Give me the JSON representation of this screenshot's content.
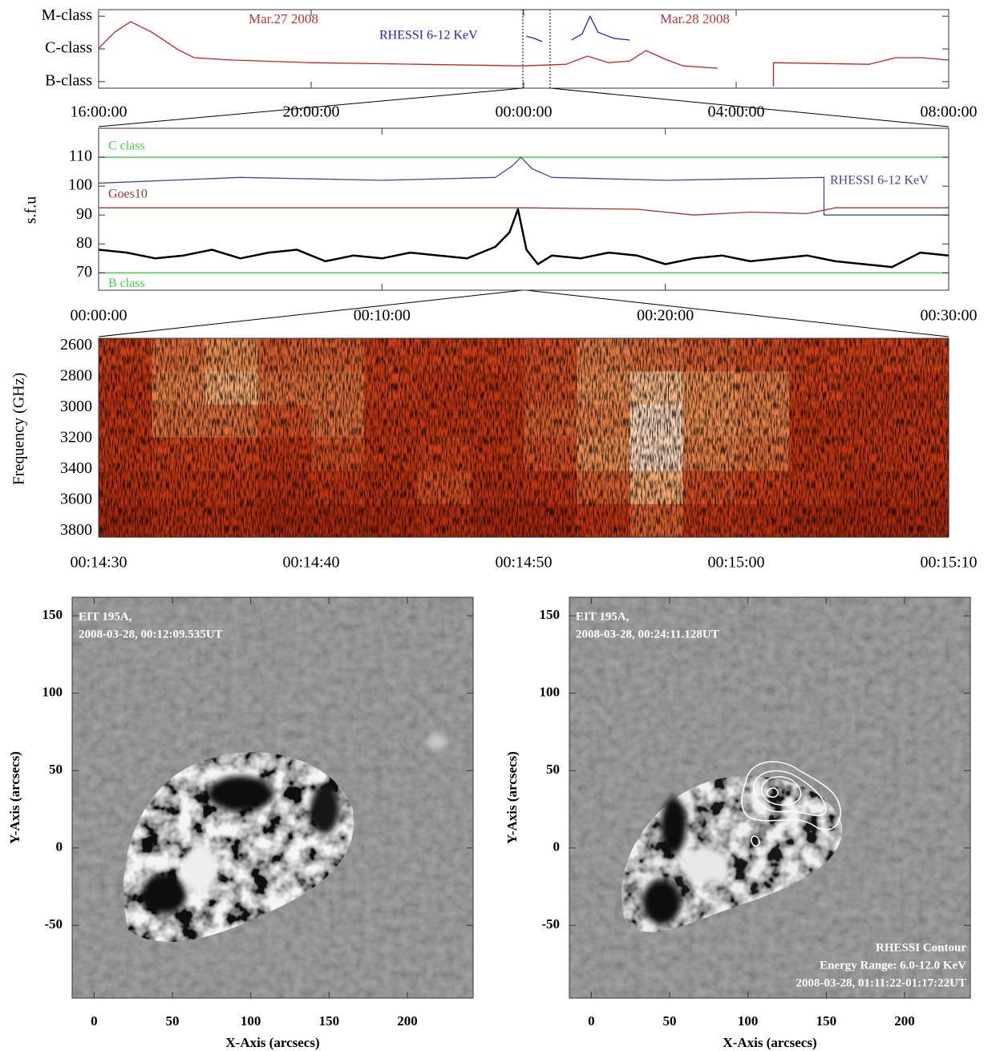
{
  "chart_data": [
    {
      "type": "line",
      "xlim": [
        16,
        32
      ],
      "xticks": [
        {
          "value": 16,
          "label": "16:00:00"
        },
        {
          "value": 20,
          "label": "20:00:00"
        },
        {
          "value": 24,
          "label": "00:00:00"
        },
        {
          "value": 28,
          "label": "04:00:00"
        },
        {
          "value": 32,
          "label": "08:00:00"
        }
      ],
      "ylim": [
        0.8,
        3.2
      ],
      "yticks": [
        {
          "value": 3,
          "label": "M-class"
        },
        {
          "value": 2,
          "label": "C-class"
        },
        {
          "value": 1,
          "label": "B-class"
        }
      ],
      "annotations": [
        {
          "text": "Mar.27 2008",
          "color": "#c83232"
        },
        {
          "text": "Mar.28 2008",
          "color": "#c83232"
        }
      ],
      "series": [
        {
          "color": "#d02020",
          "x": [
            16,
            16.3,
            16.6,
            17.0,
            17.5,
            17.8,
            18.5,
            20,
            22,
            24,
            24.8,
            25.2,
            25.6,
            26.0,
            26.3,
            26.7,
            27.0,
            27.65,
            null,
            28.7,
            28.7,
            30.5,
            31.0,
            31.5,
            32
          ],
          "values": [
            2.02,
            2.51,
            2.83,
            2.51,
            1.97,
            1.73,
            1.66,
            1.58,
            1.53,
            1.48,
            1.53,
            1.78,
            1.58,
            1.63,
            1.95,
            1.66,
            1.48,
            1.41,
            null,
            0.85,
            1.58,
            1.53,
            1.73,
            1.73,
            1.66
          ]
        },
        {
          "name": "RHESSI 6-12 KeV",
          "color": "#2020e0",
          "x": [
            24.05,
            24.2,
            24.35,
            null,
            24.9,
            25.1,
            25.25,
            25.4,
            25.7,
            26.0
          ],
          "values": [
            2.39,
            2.32,
            2.22,
            null,
            2.27,
            2.46,
            3.0,
            2.51,
            2.32,
            2.27
          ]
        }
      ]
    },
    {
      "type": "line",
      "ylabel": "s.f.u",
      "xlim": [
        0,
        30
      ],
      "xticks": [
        {
          "value": 0,
          "label": "00:00:00"
        },
        {
          "value": 10,
          "label": "00:10:00"
        },
        {
          "value": 20,
          "label": "00:20:00"
        },
        {
          "value": 30,
          "label": "00:30:00"
        }
      ],
      "ylim": [
        64,
        120
      ],
      "yticks": [
        70,
        80,
        90,
        100,
        110
      ],
      "hlines": [
        {
          "value": 110,
          "label": "C class",
          "color": "#44d044"
        },
        {
          "value": 70,
          "label": "B class",
          "color": "#44d044"
        }
      ],
      "series": [
        {
          "name": "RHESSI 6-12 KeV",
          "color": "#4444a8",
          "x": [
            0,
            5,
            10,
            14,
            14.6,
            14.9,
            15.3,
            16,
            20,
            25.6,
            25.6,
            30
          ],
          "values": [
            101,
            103,
            102,
            103,
            107,
            110,
            106,
            103,
            102,
            103,
            90,
            90
          ]
        },
        {
          "name": "Goes10",
          "color": "#a83030",
          "x": [
            0,
            15,
            19,
            21,
            23,
            25,
            26,
            30
          ],
          "values": [
            92.5,
            92.5,
            92,
            90,
            91,
            90.5,
            92.5,
            92.5
          ]
        },
        {
          "color": "#000000",
          "x": [
            0,
            1,
            2,
            3,
            4,
            5,
            6,
            7,
            8,
            9,
            10,
            11,
            12,
            13,
            14,
            14.5,
            14.8,
            15.1,
            15.5,
            16,
            17,
            18,
            19,
            20,
            21,
            22,
            23,
            24,
            25,
            26,
            27,
            28,
            29,
            30
          ],
          "values": [
            78,
            77,
            75,
            76,
            78,
            75,
            77,
            78,
            74,
            76,
            75,
            77,
            76,
            75,
            79,
            84,
            92,
            78,
            73,
            76,
            75,
            77,
            76,
            73,
            75,
            76,
            74,
            75,
            76,
            74,
            73,
            72,
            77,
            76
          ]
        }
      ]
    },
    {
      "type": "heatmap",
      "ylabel": "Frequency (GHz)",
      "xlim": [
        0,
        40
      ],
      "xticks": [
        {
          "value": 0,
          "label": "00:14:30"
        },
        {
          "value": 10,
          "label": "00:14:40"
        },
        {
          "value": 20,
          "label": "00:14:50"
        },
        {
          "value": 30,
          "label": "00:15:00"
        },
        {
          "value": 40,
          "label": "00:15:10"
        }
      ],
      "ylim": [
        3840,
        2550
      ],
      "yticks": [
        2600,
        2800,
        3000,
        3200,
        3400,
        3600,
        3800
      ],
      "colormap": [
        "#7a1200",
        "#c83a12",
        "#f0a060",
        "#ffffff"
      ],
      "z": [
        [
          0.35,
          0.5,
          0.6,
          0.45,
          0.45,
          0.35,
          0.35,
          0.35,
          0.4,
          0.55,
          0.5,
          0.45,
          0.4,
          0.35,
          0.35,
          0.35
        ],
        [
          0.3,
          0.55,
          0.7,
          0.5,
          0.5,
          0.35,
          0.3,
          0.3,
          0.4,
          0.6,
          0.75,
          0.6,
          0.55,
          0.35,
          0.3,
          0.3
        ],
        [
          0.3,
          0.5,
          0.5,
          0.4,
          0.5,
          0.3,
          0.3,
          0.3,
          0.45,
          0.55,
          0.85,
          0.6,
          0.55,
          0.3,
          0.3,
          0.3
        ],
        [
          0.3,
          0.35,
          0.35,
          0.3,
          0.4,
          0.3,
          0.35,
          0.3,
          0.4,
          0.6,
          0.85,
          0.55,
          0.5,
          0.3,
          0.3,
          0.3
        ],
        [
          0.25,
          0.3,
          0.3,
          0.25,
          0.3,
          0.25,
          0.4,
          0.25,
          0.3,
          0.45,
          0.7,
          0.4,
          0.35,
          0.3,
          0.25,
          0.25
        ],
        [
          0.2,
          0.25,
          0.25,
          0.2,
          0.2,
          0.2,
          0.25,
          0.2,
          0.2,
          0.3,
          0.45,
          0.3,
          0.25,
          0.2,
          0.2,
          0.2
        ]
      ]
    },
    {
      "type": "image",
      "xlabel": "X-Axis (arcsecs)",
      "ylabel": "Y-Axis (arcsecs)",
      "xlim": [
        -14,
        242
      ],
      "xticks": [
        0,
        50,
        100,
        150,
        200
      ],
      "ylim": [
        -97,
        162
      ],
      "yticks": [
        -50,
        0,
        50,
        100,
        150
      ],
      "annotations": [
        {
          "text": "EIT 195A,",
          "position": "top-left"
        },
        {
          "text": "2008-03-28, 00:12:09.535UT",
          "position": "top-left"
        }
      ]
    },
    {
      "type": "image",
      "xlabel": "X-Axis (arcsecs)",
      "ylabel": "Y-Axis (arcsecs)",
      "xlim": [
        -14,
        242
      ],
      "xticks": [
        0,
        50,
        100,
        150,
        200
      ],
      "ylim": [
        -97,
        162
      ],
      "yticks": [
        -50,
        0,
        50,
        100,
        150
      ],
      "annotations": [
        {
          "text": "EIT 195A,",
          "position": "top-left"
        },
        {
          "text": "2008-03-28, 00:24:11.128UT",
          "position": "top-left"
        },
        {
          "text": "RHESSI Contour",
          "position": "bottom-right"
        },
        {
          "text": "Energy Range: 6.0-12.0 KeV",
          "position": "bottom-right"
        },
        {
          "text": "2008-03-28, 01:11:22-01:17:22UT",
          "position": "bottom-right"
        }
      ]
    }
  ]
}
